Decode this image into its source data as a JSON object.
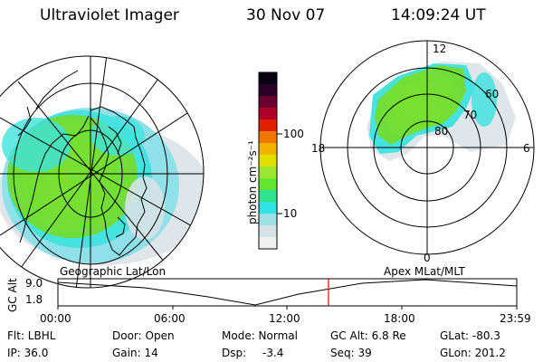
{
  "header": {
    "instrument": "Ultraviolet Imager",
    "date": "30 Nov 07",
    "time": "14:09:24 UT"
  },
  "colorbar": {
    "unit_label": "photon cm⁻²s⁻¹",
    "tick_labels": [
      "100",
      "10"
    ],
    "colors": [
      "#efefef",
      "#d6e3e6",
      "#9fe0e6",
      "#30e3e3",
      "#30e38c",
      "#63e630",
      "#9ce630",
      "#dfe000",
      "#f2b200",
      "#f07800",
      "#e02000",
      "#b0002a",
      "#6b0030",
      "#2a002a",
      "#0a0014"
    ]
  },
  "polar_plot": {
    "ring_labels": [
      "80",
      "70",
      "60"
    ],
    "clock_labels": {
      "top": "12",
      "left": "18",
      "right": "6",
      "bottom": "0"
    }
  },
  "panel_labels": {
    "left": "Geographic Lat/Lon",
    "right": "Apex MLat/MLT"
  },
  "orbit_plot": {
    "axis_title": "GC Alt",
    "y_ticks": [
      "9.0",
      "1.8"
    ],
    "x_ticks": [
      "00:00",
      "06:00",
      "12:00",
      "18:00",
      "23:59"
    ],
    "current_time_fraction": 0.5897,
    "marker_color": "#e00000"
  },
  "status": {
    "flt": "Flt: LBHL",
    "ip": "IP: 36.0",
    "door": "Door: Open",
    "gain": "Gain: 14",
    "mode": "Mode: Normal",
    "dsp_label": "Dsp:",
    "dsp_value": "-3.4",
    "gc_alt": "GC Alt: 6.8 Re",
    "seq": "Seq: 39",
    "glat": "GLat: -80.3",
    "glon": "GLon: 201.2"
  }
}
